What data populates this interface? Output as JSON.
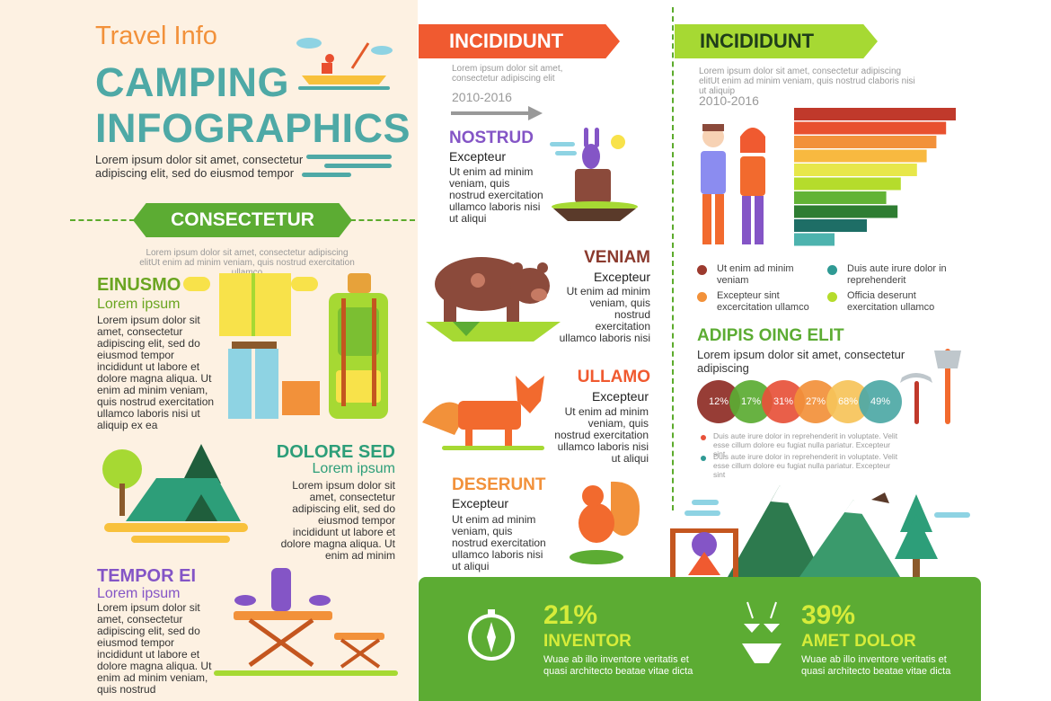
{
  "colors": {
    "left_bg": "#fdf1e2",
    "teal": "#4ea9a6",
    "orange": "#f2913a",
    "green": "#5cac33",
    "red": "#f05a30",
    "lime": "#a6d933",
    "purple": "#8455c6"
  },
  "header": {
    "kicker": "Travel Info",
    "title_line1": "CAMPING",
    "title_line2": "INFOGRAPHICS",
    "intro": "Lorem ipsum dolor sit amet, consectetur adipiscing elit, sed do eiusmod tempor"
  },
  "consectetur": {
    "label": "CONSECTETUR",
    "text": "Lorem ipsum dolor sit amet, consectetur adipiscing elitUt enim ad minim veniam, quis nostrud exercitation ullamco"
  },
  "einusmo": {
    "title": "EINUSMO",
    "subtitle": "Lorem ipsum",
    "text": "Lorem ipsum dolor sit amet, consectetur adipiscing elit, sed do eiusmod tempor incididunt ut labore et dolore magna aliqua. Ut enim ad minim veniam, quis nostrud exercitation ullamco laboris nisi ut aliquip ex ea"
  },
  "dolore": {
    "title": "DOLORE SED",
    "subtitle": "Lorem ipsum",
    "text": "Lorem ipsum dolor sit amet, consectetur adipiscing elit, sed do eiusmod tempor incididunt ut labore et dolore magna aliqua. Ut enim ad minim"
  },
  "tempor": {
    "title": "TEMPOR EI",
    "subtitle": "Lorem ipsum",
    "text": "Lorem ipsum dolor sit amet, consectetur adipiscing elit, sed do eiusmod tempor incididunt ut labore et dolore magna aliqua. Ut enim ad minim veniam, quis nostrud"
  },
  "mid": {
    "banner": "INCIDIDUNT",
    "text": "Lorem ipsum dolor sit amet, consectetur adipiscing elit",
    "years": "2010-2016"
  },
  "animals": {
    "nostrud": {
      "title": "NOSTRUD",
      "sub": "Excepteur",
      "text": "Ut enim ad minim veniam, quis nostrud exercitation ullamco laboris nisi ut aliqui"
    },
    "veniam": {
      "title": "VENIAM",
      "sub": "Excepteur",
      "text": "Ut enim ad minim veniam, quis nostrud exercitation ullamco laboris nisi"
    },
    "ullamo": {
      "title": "ULLAMO",
      "sub": "Excepteur",
      "text": "Ut enim ad minim veniam, quis nostrud exercitation ullamco laboris nisi ut aliqui"
    },
    "deserunt": {
      "title": "DESERUNT",
      "sub": "Excepteur",
      "text": "Ut enim ad minim veniam, quis nostrud exercitation ullamco laboris nisi ut aliqui"
    }
  },
  "right": {
    "banner": "INCIDIDUNT",
    "text": "Lorem ipsum dolor sit amet, consectetur adipiscing elitUt enim ad minim veniam, quis nostrud claboris nisi ut aliquip",
    "years": "2010-2016",
    "legend": [
      {
        "text": "Ut enim ad minim veniam",
        "color": "#9c3a2e"
      },
      {
        "text": "Duis aute irure dolor in reprehenderit",
        "color": "#2f9a94"
      },
      {
        "text": "Excepteur sint excercitation ullamco",
        "color": "#f2913a"
      },
      {
        "text": "Officia deserunt exercitation ullamco",
        "color": "#b5dc2c"
      }
    ],
    "adipis_title": "ADIPIS OING ELIT",
    "adipis_text": "Lorem ipsum dolor sit amet, consectetur adipiscing",
    "notes": [
      {
        "text": "Duis aute irure dolor in reprehenderit in voluptate. Velit esse cillum dolore eu fugiat nulla pariatur. Excepteur sint",
        "color": "#e8523a"
      },
      {
        "text": "Duis aute irure dolor in reprehenderit in voluptate. Velit esse cillum dolore eu fugiat nulla pariatur. Excepteur sint",
        "color": "#2f9a94"
      }
    ]
  },
  "chart_data": {
    "type": "bar",
    "categories": [
      "",
      "",
      "",
      "",
      "",
      "",
      "",
      "",
      "",
      ""
    ],
    "values": [
      100,
      94,
      88,
      82,
      76,
      66,
      57,
      64,
      45,
      25
    ],
    "bar_colors": [
      "#c0392b",
      "#e8512f",
      "#f2913a",
      "#f8b940",
      "#e7e74a",
      "#b5dc2c",
      "#62b335",
      "#2e7d32",
      "#1e6e66",
      "#4db3ae"
    ],
    "circles": [
      {
        "label": "12%",
        "value": 12,
        "color": "#8f2d26"
      },
      {
        "label": "17%",
        "value": 17,
        "color": "#5cac33"
      },
      {
        "label": "31%",
        "value": 31,
        "color": "#e8523a"
      },
      {
        "label": "27%",
        "value": 27,
        "color": "#f2913a"
      },
      {
        "label": "68%",
        "value": 68,
        "color": "#f7c45a"
      },
      {
        "label": "49%",
        "value": 49,
        "color": "#4ea9a6"
      }
    ]
  },
  "stats": [
    {
      "value": "21%",
      "title": "INVENTOR",
      "text": "Wuae ab illo inventore veritatis et quasi architecto beatae vitae dicta",
      "icon": "compass-icon"
    },
    {
      "value": "39%",
      "title": "AMET DOLOR",
      "text": "Wuae ab illo inventore veritatis et quasi architecto beatae vitae dicta",
      "icon": "bikini-icon"
    }
  ]
}
